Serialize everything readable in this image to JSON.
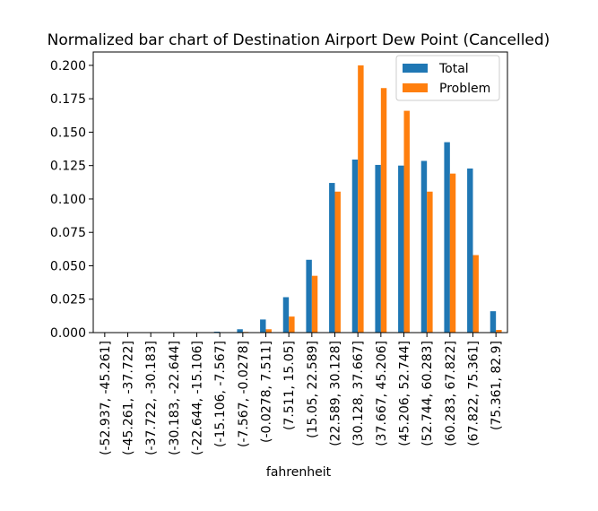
{
  "chart_data": {
    "type": "bar",
    "title": "Normalized bar chart of Destination Airport Dew Point (Cancelled)",
    "xlabel": "fahrenheit",
    "ylabel": "",
    "ylim": [
      0,
      0.21
    ],
    "yticks": [
      0.0,
      0.025,
      0.05,
      0.075,
      0.1,
      0.125,
      0.15,
      0.175,
      0.2
    ],
    "ytick_labels": [
      "0.000",
      "0.025",
      "0.050",
      "0.075",
      "0.100",
      "0.125",
      "0.150",
      "0.175",
      "0.200"
    ],
    "grid": false,
    "legend_position": "top-right",
    "categories": [
      "(-52.937, -45.261]",
      "(-45.261, -37.722]",
      "(-37.722, -30.183]",
      "(-30.183, -22.644]",
      "(-22.644, -15.106]",
      "(-15.106, -7.567]",
      "(-7.567, -0.0278]",
      "(-0.0278, 7.511]",
      "(7.511, 15.05]",
      "(15.05, 22.589]",
      "(22.589, 30.128]",
      "(30.128, 37.667]",
      "(37.667, 45.206]",
      "(45.206, 52.744]",
      "(52.744, 60.283]",
      "(60.283, 67.822]",
      "(67.822, 75.361]",
      "(75.361, 82.9]"
    ],
    "series": [
      {
        "name": "Total",
        "color": "#1f77b4",
        "values": [
          0.0,
          0.0,
          0.0,
          0.0,
          0.0,
          0.0007,
          0.0025,
          0.0098,
          0.0265,
          0.0545,
          0.112,
          0.1295,
          0.1255,
          0.125,
          0.1285,
          0.1425,
          0.1228,
          0.016
        ]
      },
      {
        "name": "Problem",
        "color": "#ff7f0e",
        "values": [
          0.0,
          0.0,
          0.0,
          0.0,
          0.0,
          0.0,
          0.0005,
          0.0025,
          0.012,
          0.0425,
          0.1055,
          0.2,
          0.183,
          0.166,
          0.1055,
          0.119,
          0.058,
          0.002
        ]
      }
    ]
  }
}
